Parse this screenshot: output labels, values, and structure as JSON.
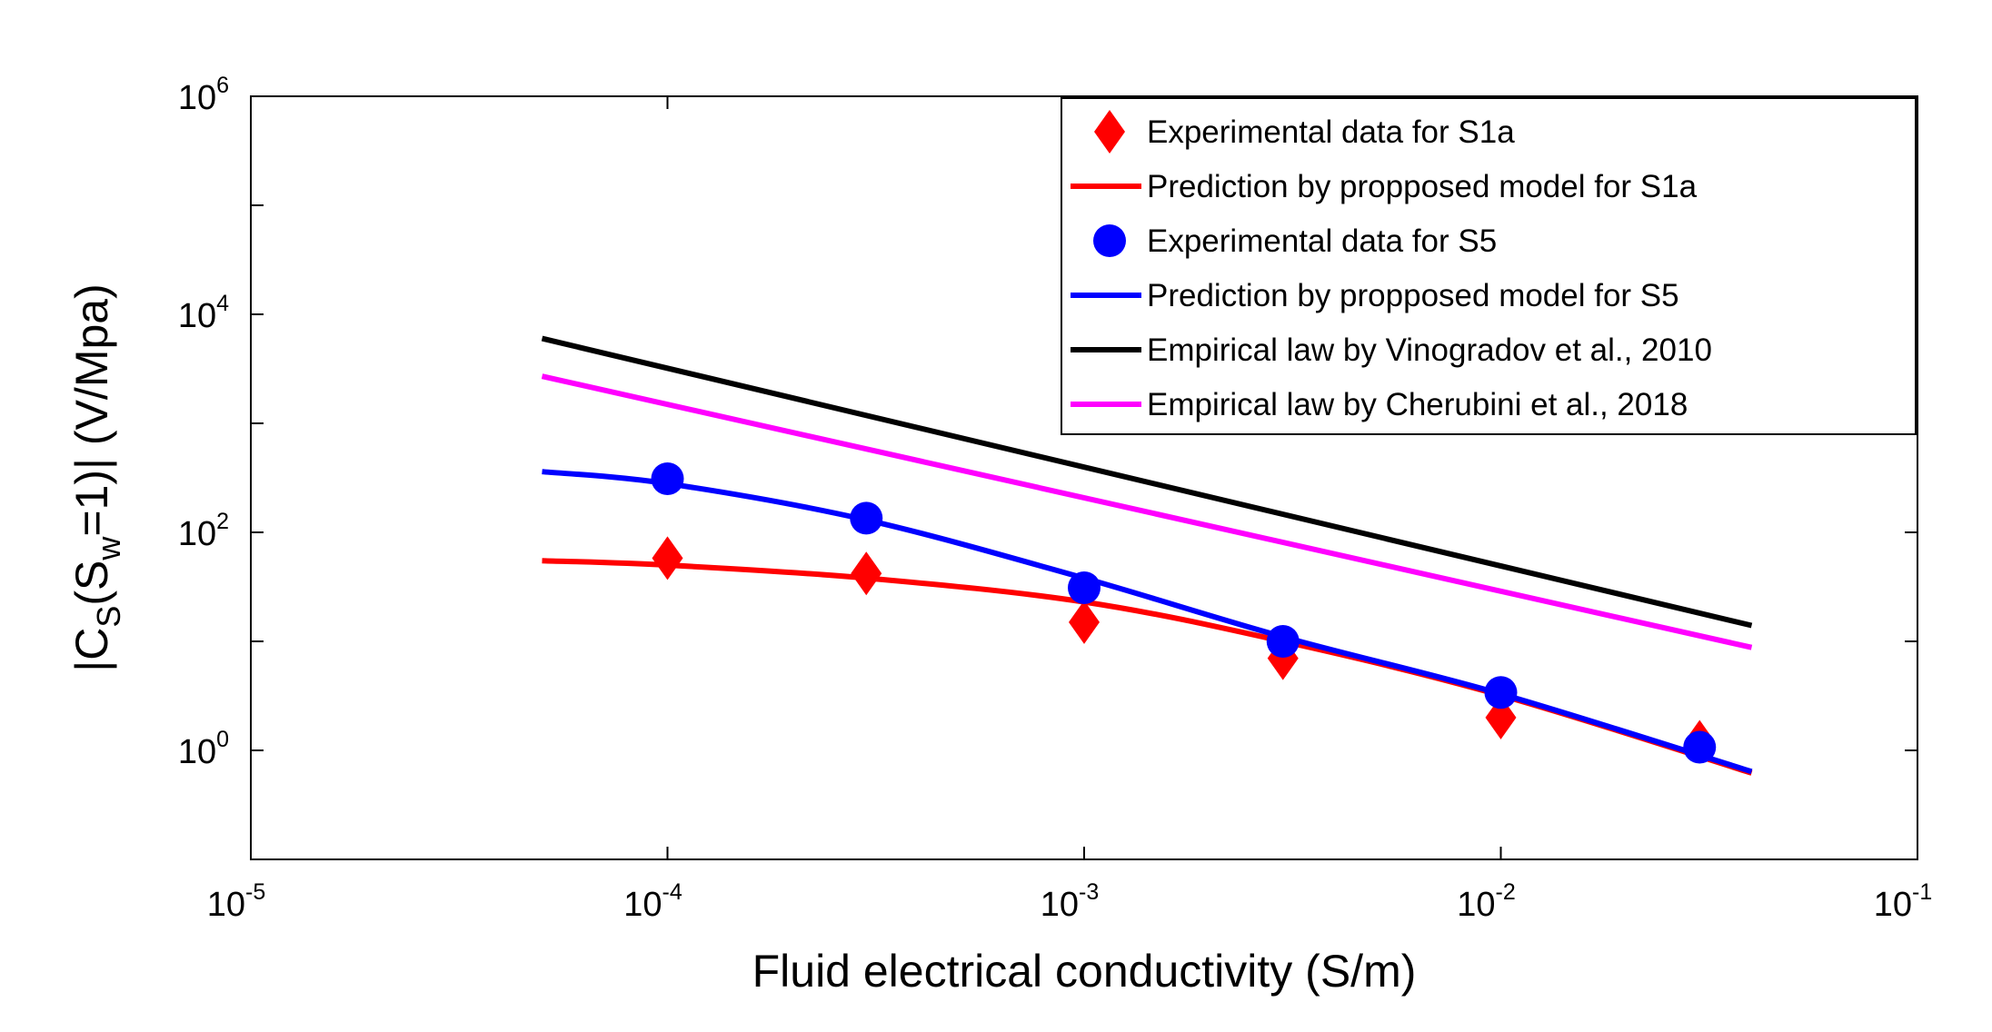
{
  "chart_data": {
    "type": "line",
    "xscale": "log",
    "yscale": "log",
    "xlim": [
      1e-05,
      0.1
    ],
    "ylim": [
      0.1,
      1000000
    ],
    "xlabel": "Fluid electrical conductivity (S/m)",
    "ylabel": {
      "prefix": "|C",
      "sub1": "S",
      "mid": "(S",
      "sub2": "w",
      "suffix": "=1)| (V/Mpa)"
    },
    "xticks": [
      {
        "value": 1e-05,
        "base": "10",
        "exp": "-5"
      },
      {
        "value": 0.0001,
        "base": "10",
        "exp": "-4"
      },
      {
        "value": 0.001,
        "base": "10",
        "exp": "-3"
      },
      {
        "value": 0.01,
        "base": "10",
        "exp": "-2"
      },
      {
        "value": 0.1,
        "base": "10",
        "exp": "-1"
      }
    ],
    "yticks": [
      {
        "value": 1,
        "base": "10",
        "exp": "0"
      },
      {
        "value": 100,
        "base": "10",
        "exp": "2"
      },
      {
        "value": 10000,
        "base": "10",
        "exp": "4"
      },
      {
        "value": 1000000,
        "base": "10",
        "exp": "6"
      }
    ],
    "legend_position": "top-right",
    "series": [
      {
        "name": "Experimental data for S1a",
        "kind": "scatter",
        "marker": "diamond",
        "color": "#ff0000",
        "x": [
          0.0001,
          0.0003,
          0.001,
          0.003,
          0.01,
          0.03
        ],
        "y": [
          58,
          42,
          15,
          7,
          2,
          1.2
        ]
      },
      {
        "name": "Prediction by propposed model for S1a",
        "kind": "line",
        "color": "#ff0000",
        "x": [
          5e-05,
          0.0001,
          0.0003,
          0.001,
          0.003,
          0.01,
          0.04
        ],
        "y": [
          55,
          50,
          38,
          23,
          10,
          3.2,
          0.62
        ]
      },
      {
        "name": "Experimental data for S5",
        "kind": "scatter",
        "marker": "circle",
        "color": "#0000ff",
        "x": [
          0.0001,
          0.0003,
          0.001,
          0.003,
          0.01,
          0.03
        ],
        "y": [
          310,
          135,
          31,
          10,
          3.4,
          1.07
        ]
      },
      {
        "name": "Prediction by propposed model for S5",
        "kind": "line",
        "color": "#0000ff",
        "x": [
          5e-05,
          0.0001,
          0.0003,
          0.001,
          0.003,
          0.01,
          0.04
        ],
        "y": [
          360,
          280,
          130,
          38,
          11,
          3.3,
          0.64
        ]
      },
      {
        "name": "Empirical law by Vinogradov et al., 2010",
        "kind": "line",
        "color": "#000000",
        "x": [
          5e-05,
          0.04
        ],
        "y": [
          6000,
          14
        ]
      },
      {
        "name": "Empirical law by Cherubini et al., 2018",
        "kind": "line",
        "color": "#ff00ff",
        "x": [
          5e-05,
          0.04
        ],
        "y": [
          2700,
          8.8
        ]
      }
    ]
  }
}
